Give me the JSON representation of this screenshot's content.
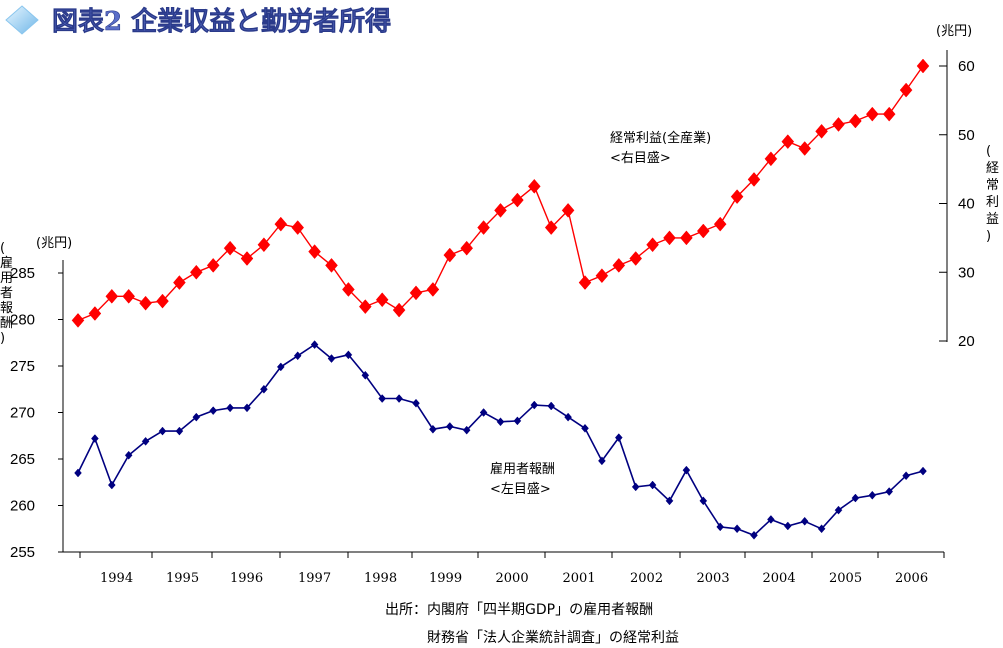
{
  "title": "図表2 企業収益と勤労者所得",
  "chart_data": {
    "type": "line",
    "title": "図表2 企業収益と勤労者所得",
    "x_labels": [
      "1994",
      "1995",
      "1996",
      "1997",
      "1998",
      "1999",
      "2000",
      "2001",
      "2002",
      "2003",
      "2004",
      "2005",
      "2006"
    ],
    "left_axis": {
      "unit": "(兆円)",
      "title": "(雇用者報酬)",
      "title_chars": [
        "(",
        "雇",
        "用",
        "者",
        "報",
        "酬",
        ")"
      ],
      "range": [
        255,
        288
      ],
      "ticks": [
        "255",
        "260",
        "265",
        "270",
        "275",
        "280",
        "285"
      ]
    },
    "right_axis": {
      "unit": "(兆円)",
      "title": "(経常利益)",
      "title_chars": [
        "(",
        "経",
        "常",
        "利",
        "益",
        ")"
      ],
      "range": [
        20,
        60
      ],
      "ticks": [
        "20",
        "30",
        "40",
        "50",
        "60"
      ]
    },
    "series": [
      {
        "name": "経常利益(全産業)",
        "name_lines": [
          "経常利益(全産業)",
          "<右目盛>"
        ],
        "axis": "right",
        "color": "#ff0000",
        "marker": "diamond-large",
        "values": [
          23.0,
          24.0,
          26.5,
          26.5,
          25.5,
          25.8,
          28.5,
          30.0,
          31.0,
          33.5,
          32.0,
          34.0,
          37.0,
          36.5,
          33.0,
          31.0,
          27.5,
          25.0,
          26.0,
          24.5,
          27.0,
          27.5,
          32.5,
          33.5,
          36.5,
          39.0,
          40.5,
          42.5,
          36.5,
          39.0,
          28.5,
          29.5,
          31.0,
          32.0,
          34.0,
          35.0,
          35.0,
          36.0,
          37.0,
          41.0,
          43.5,
          46.5,
          49.0,
          48.0,
          50.5,
          51.5,
          52.0,
          53.0,
          53.0,
          56.5,
          60.0
        ]
      },
      {
        "name": "雇用者報酬",
        "name_lines": [
          "雇用者報酬",
          "<左目盛>"
        ],
        "axis": "left",
        "color": "#000080",
        "marker": "diamond-small",
        "values": [
          263.5,
          267.2,
          262.2,
          265.4,
          266.9,
          268.0,
          268.0,
          269.5,
          270.2,
          270.5,
          270.5,
          272.5,
          274.9,
          276.1,
          277.3,
          275.8,
          276.2,
          274.0,
          271.5,
          271.5,
          271.0,
          268.2,
          268.5,
          268.1,
          270.0,
          269.0,
          269.1,
          270.8,
          270.7,
          269.5,
          268.3,
          264.8,
          267.3,
          262.0,
          262.2,
          260.5,
          263.8,
          260.5,
          257.7,
          257.5,
          256.8,
          258.5,
          257.8,
          258.3,
          257.5,
          259.5,
          260.8,
          261.1,
          261.5,
          263.2,
          263.7
        ]
      }
    ],
    "grid": false,
    "legend": "inline-labels"
  },
  "source": {
    "line1": "出所：内閣府「四半期GDP」の雇用者報酬",
    "line2": "財務省「法人企業統計調査」の経常利益"
  },
  "colors": {
    "title": "#5a6ec8",
    "profit": "#ff0000",
    "compensation": "#000080",
    "axis": "#000000"
  },
  "icons": {
    "title_bullet": "diamond-bullet-icon"
  }
}
